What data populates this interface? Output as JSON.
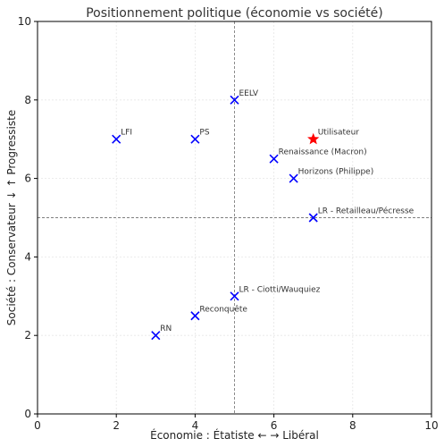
{
  "chart_data": {
    "type": "scatter",
    "title": "Positionnement politique (économie vs société)",
    "xlabel": "Économie : Étatiste ←   → Libéral",
    "ylabel": "Société : Conservateur ↓   ↑ Progressiste",
    "xlim": [
      0,
      10
    ],
    "ylim": [
      0,
      10
    ],
    "xticks": [
      0,
      2,
      4,
      6,
      8,
      10
    ],
    "yticks": [
      0,
      2,
      4,
      6,
      8,
      10
    ],
    "grid": true,
    "reference_lines": {
      "x": 5,
      "y": 5
    },
    "series": [
      {
        "marker": "x",
        "color": "#0000ff",
        "points": [
          {
            "label": "EELV",
            "x": 5,
            "y": 8
          },
          {
            "label": "LFI",
            "x": 2,
            "y": 7
          },
          {
            "label": "PS",
            "x": 4,
            "y": 7
          },
          {
            "label": "Renaissance (Macron)",
            "x": 6,
            "y": 6.5
          },
          {
            "label": "Horizons (Philippe)",
            "x": 6.5,
            "y": 6
          },
          {
            "label": "LR - Retailleau/Pécresse",
            "x": 7,
            "y": 5
          },
          {
            "label": "LR - Ciotti/Wauquiez",
            "x": 5,
            "y": 3
          },
          {
            "label": "Reconquête",
            "x": 4,
            "y": 2.5
          },
          {
            "label": "RN",
            "x": 3,
            "y": 2
          }
        ]
      },
      {
        "marker": "star",
        "color": "#ff0000",
        "points": [
          {
            "label": "Utilisateur",
            "x": 7,
            "y": 7
          }
        ]
      }
    ]
  }
}
